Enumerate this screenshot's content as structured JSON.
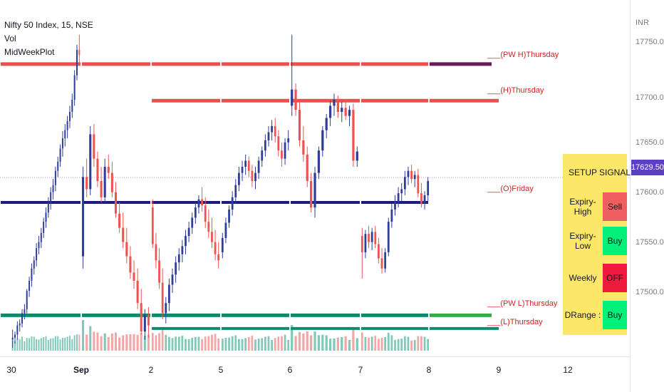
{
  "legend": {
    "symbol": "Nifty 50 Index, 15, NSE",
    "indicator1": "Vol",
    "indicator2": "MidWeekPlot"
  },
  "price_scale": {
    "currency": "INR",
    "labels": [
      "17750.00",
      "17700.00",
      "17650.00",
      "17600.00",
      "17550.00",
      "17500.00"
    ],
    "last_price": "17629.50",
    "last_price_color": "#5b3fc4"
  },
  "time_scale": {
    "labels": [
      "30",
      "Sep",
      "2",
      "5",
      "6",
      "7",
      "8",
      "9",
      "12"
    ]
  },
  "level_labels": {
    "pw_high": "___(PW H)Thursday",
    "high": "___(H)Thursday",
    "open": "___(O)Friday",
    "pw_low": "___(PW L)Thursday",
    "low": "___(L)Thursday"
  },
  "signal_table": {
    "header_setup": "SETUP",
    "header_signal": "SIGNAL",
    "rows": [
      {
        "setup": "Expiry-High",
        "signal": "Sell",
        "color": "#f05f5f"
      },
      {
        "setup": "Expiry-Low",
        "signal": "Buy",
        "color": "#00f07a"
      },
      {
        "setup": "Weekly",
        "signal": "OFF",
        "color": "#ef1a3c"
      },
      {
        "setup": "DRange  :",
        "signal": "Buy",
        "color": "#00f07a"
      }
    ]
  },
  "colors": {
    "up": "#2e3d99",
    "down": "#ef5350",
    "vol_up": "#7fc9b8",
    "vol_down": "#f4a6a6",
    "pw_high_line": "#ef4e4e",
    "open_line": "#1e1a80",
    "low_line": "#0f8a6d"
  },
  "chart_data": {
    "type": "candlestick",
    "title": "Nifty 50 Index, 15, NSE",
    "ylim": [
      17455,
      17790
    ],
    "y_ticks": [
      17500,
      17550,
      17600,
      17650,
      17700,
      17750
    ],
    "x_labels": [
      "30",
      "Sep",
      "2",
      "5",
      "6",
      "7",
      "8",
      "9",
      "12"
    ],
    "levels": [
      {
        "name": "(PW H)Thursday",
        "price": 17741
      },
      {
        "name": "(H)Thursday",
        "price": 17705
      },
      {
        "name": "(O)Friday",
        "price": 17605
      },
      {
        "name": "(PW L)Thursday",
        "price": 17494
      },
      {
        "name": "(L)Thursday",
        "price": 17481
      },
      {
        "name": "last",
        "price": 17629.5
      }
    ],
    "segments": [
      {
        "label": "30",
        "ohlc": [
          [
            17470,
            17480,
            17462,
            17472
          ],
          [
            17472,
            17478,
            17466,
            17475
          ],
          [
            17475,
            17488,
            17470,
            17484
          ],
          [
            17484,
            17490,
            17478,
            17486
          ],
          [
            17486,
            17500,
            17482,
            17496
          ],
          [
            17496,
            17505,
            17490,
            17500
          ],
          [
            17500,
            17520,
            17496,
            17518
          ],
          [
            17518,
            17532,
            17512,
            17528
          ],
          [
            17528,
            17545,
            17522,
            17540
          ],
          [
            17540,
            17552,
            17534,
            17548
          ],
          [
            17548,
            17565,
            17542,
            17560
          ],
          [
            17560,
            17572,
            17554,
            17566
          ],
          [
            17566,
            17580,
            17560,
            17575
          ],
          [
            17575,
            17590,
            17570,
            17586
          ],
          [
            17586,
            17600,
            17580,
            17595
          ],
          [
            17595,
            17610,
            17590,
            17605
          ],
          [
            17605,
            17620,
            17598,
            17615
          ],
          [
            17615,
            17628,
            17608,
            17622
          ],
          [
            17622,
            17640,
            17616,
            17636
          ],
          [
            17636,
            17650,
            17630,
            17645
          ],
          [
            17645,
            17662,
            17640,
            17658
          ],
          [
            17658,
            17675,
            17650,
            17668
          ],
          [
            17668,
            17682,
            17660,
            17676
          ],
          [
            17676,
            17690,
            17668,
            17685
          ],
          [
            17685,
            17700,
            17678,
            17694
          ],
          [
            17694,
            17712,
            17688,
            17706
          ],
          [
            17706,
            17735,
            17700,
            17730
          ],
          [
            17730,
            17760,
            17725,
            17755
          ],
          [
            17755,
            17770,
            17740,
            17750
          ]
        ]
      },
      {
        "label": "Sep",
        "ohlc": [
          [
            17552,
            17640,
            17540,
            17630
          ],
          [
            17630,
            17648,
            17610,
            17618
          ],
          [
            17618,
            17680,
            17612,
            17672
          ],
          [
            17672,
            17682,
            17640,
            17648
          ],
          [
            17648,
            17655,
            17620,
            17626
          ],
          [
            17626,
            17640,
            17605,
            17610
          ],
          [
            17610,
            17648,
            17605,
            17640
          ],
          [
            17640,
            17652,
            17628,
            17634
          ],
          [
            17634,
            17645,
            17610,
            17615
          ],
          [
            17615,
            17625,
            17590,
            17594
          ],
          [
            17594,
            17605,
            17575,
            17580
          ],
          [
            17580,
            17595,
            17560,
            17566
          ],
          [
            17566,
            17580,
            17545,
            17552
          ],
          [
            17552,
            17562,
            17530,
            17536
          ],
          [
            17536,
            17548,
            17520,
            17528
          ],
          [
            17528,
            17540,
            17500,
            17506
          ],
          [
            17506,
            17520,
            17475,
            17478
          ],
          [
            17478,
            17500,
            17470,
            17494
          ],
          [
            17494,
            17502,
            17472,
            17484
          ]
        ]
      },
      {
        "label": "2",
        "ohlc": [
          [
            17600,
            17608,
            17560,
            17564
          ],
          [
            17564,
            17575,
            17540,
            17548
          ],
          [
            17548,
            17560,
            17520,
            17526
          ],
          [
            17526,
            17540,
            17490,
            17496
          ],
          [
            17496,
            17512,
            17486,
            17506
          ],
          [
            17506,
            17530,
            17498,
            17524
          ],
          [
            17524,
            17540,
            17516,
            17534
          ],
          [
            17534,
            17552,
            17526,
            17546
          ],
          [
            17546,
            17560,
            17538,
            17554
          ],
          [
            17554,
            17568,
            17546,
            17562
          ],
          [
            17562,
            17578,
            17554,
            17572
          ],
          [
            17572,
            17586,
            17566,
            17580
          ],
          [
            17580,
            17595,
            17574,
            17590
          ],
          [
            17590,
            17605,
            17584,
            17600
          ],
          [
            17600,
            17612,
            17594,
            17608
          ],
          [
            17608,
            17620,
            17596,
            17602
          ],
          [
            17602,
            17610,
            17580,
            17586
          ],
          [
            17586,
            17598,
            17570,
            17576
          ],
          [
            17576,
            17590,
            17560,
            17566
          ],
          [
            17566,
            17578,
            17548,
            17554
          ],
          [
            17554,
            17566,
            17540,
            17548
          ]
        ]
      },
      {
        "label": "5",
        "ohlc": [
          [
            17556,
            17575,
            17550,
            17570
          ],
          [
            17570,
            17590,
            17565,
            17585
          ],
          [
            17585,
            17602,
            17580,
            17598
          ],
          [
            17598,
            17616,
            17592,
            17610
          ],
          [
            17610,
            17628,
            17604,
            17622
          ],
          [
            17622,
            17640,
            17616,
            17634
          ],
          [
            17634,
            17646,
            17626,
            17640
          ],
          [
            17640,
            17652,
            17632,
            17646
          ],
          [
            17646,
            17650,
            17630,
            17636
          ],
          [
            17636,
            17642,
            17620,
            17626
          ],
          [
            17626,
            17640,
            17618,
            17634
          ],
          [
            17634,
            17650,
            17628,
            17646
          ],
          [
            17646,
            17660,
            17640,
            17656
          ],
          [
            17656,
            17672,
            17650,
            17666
          ],
          [
            17666,
            17680,
            17660,
            17674
          ],
          [
            17674,
            17686,
            17666,
            17680
          ],
          [
            17680,
            17688,
            17664,
            17670
          ],
          [
            17670,
            17676,
            17650,
            17656
          ],
          [
            17656,
            17664,
            17640,
            17648
          ],
          [
            17648,
            17668,
            17642,
            17664
          ],
          [
            17664,
            17676,
            17656,
            17668
          ]
        ]
      },
      {
        "label": "6",
        "ohlc": [
          [
            17700,
            17770,
            17690,
            17716
          ],
          [
            17716,
            17722,
            17690,
            17696
          ],
          [
            17696,
            17704,
            17660,
            17666
          ],
          [
            17666,
            17680,
            17645,
            17652
          ],
          [
            17652,
            17660,
            17620,
            17626
          ],
          [
            17626,
            17634,
            17595,
            17600
          ],
          [
            17600,
            17640,
            17590,
            17634
          ],
          [
            17634,
            17660,
            17628,
            17656
          ],
          [
            17656,
            17680,
            17650,
            17676
          ],
          [
            17676,
            17692,
            17668,
            17688
          ],
          [
            17688,
            17705,
            17680,
            17700
          ],
          [
            17700,
            17712,
            17690,
            17706
          ],
          [
            17706,
            17710,
            17688,
            17694
          ],
          [
            17694,
            17704,
            17684,
            17698
          ],
          [
            17698,
            17706,
            17686,
            17690
          ],
          [
            17690,
            17700,
            17680,
            17696
          ],
          [
            17696,
            17702,
            17640,
            17646
          ],
          [
            17646,
            17660,
            17640,
            17655
          ]
        ]
      },
      {
        "label": "7",
        "ohlc": [
          [
            17572,
            17580,
            17530,
            17556
          ],
          [
            17556,
            17578,
            17550,
            17574
          ],
          [
            17574,
            17582,
            17560,
            17566
          ],
          [
            17566,
            17580,
            17558,
            17576
          ],
          [
            17576,
            17582,
            17560,
            17564
          ],
          [
            17564,
            17570,
            17545,
            17550
          ],
          [
            17550,
            17560,
            17535,
            17540
          ],
          [
            17540,
            17560,
            17536,
            17556
          ],
          [
            17556,
            17590,
            17552,
            17586
          ],
          [
            17586,
            17604,
            17580,
            17598
          ],
          [
            17598,
            17612,
            17592,
            17606
          ],
          [
            17606,
            17620,
            17600,
            17614
          ],
          [
            17614,
            17624,
            17606,
            17618
          ],
          [
            17618,
            17636,
            17612,
            17630
          ],
          [
            17630,
            17640,
            17622,
            17636
          ],
          [
            17636,
            17642,
            17624,
            17628
          ],
          [
            17628,
            17636,
            17620,
            17632
          ],
          [
            17632,
            17638,
            17610,
            17614
          ],
          [
            17614,
            17624,
            17600,
            17604
          ],
          [
            17604,
            17616,
            17598,
            17612
          ],
          [
            17612,
            17630,
            17606,
            17626
          ]
        ]
      }
    ]
  }
}
